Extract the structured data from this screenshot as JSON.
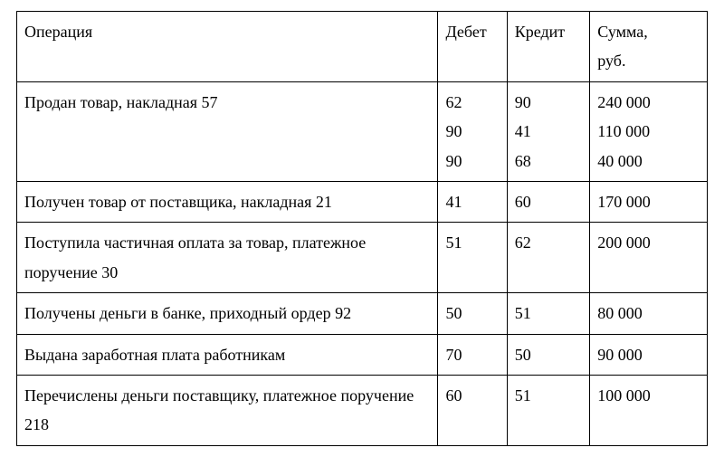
{
  "table": {
    "columns": {
      "operation": "Операция",
      "debit": "Дебет",
      "credit": "Кредит",
      "sum": "Сумма,\nруб."
    },
    "rows": [
      {
        "operation": "Продан товар, накладная 57",
        "debit": "62\n90\n90",
        "credit": "90\n41\n68",
        "sum": "240 000\n110 000\n40 000"
      },
      {
        "operation": "Получен товар от поставщика, накладная 21",
        "debit": "41",
        "credit": "60",
        "sum": "170 000"
      },
      {
        "operation": "Поступила частичная оплата за товар, платежное поручение 30",
        "debit": "51",
        "credit": "62",
        "sum": "200 000"
      },
      {
        "operation": "Получены деньги в банке, приходный ордер 92",
        "debit": "50",
        "credit": "51",
        "sum": "80 000"
      },
      {
        "operation": "Выдана заработная плата работникам",
        "debit": "70",
        "credit": "50",
        "sum": "90 000"
      },
      {
        "operation": "Перечислены деньги поставщику, платежное поручение 218",
        "debit": "60",
        "credit": "51",
        "sum": "100 000"
      }
    ]
  }
}
